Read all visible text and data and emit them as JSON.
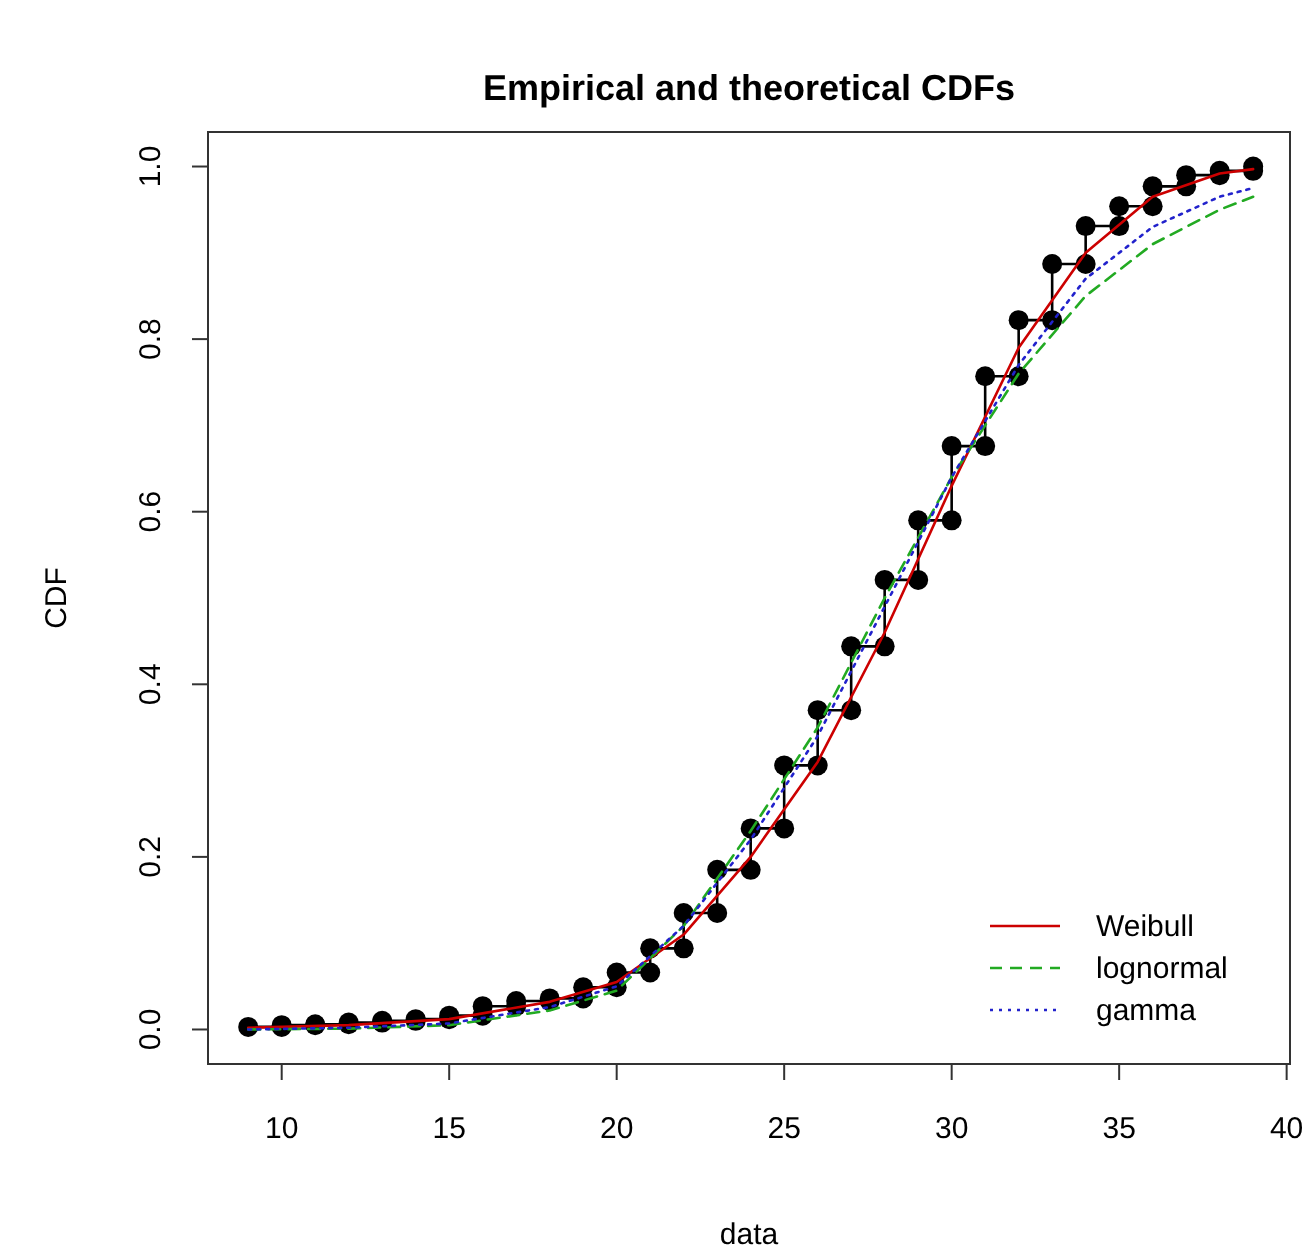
{
  "chart_data": {
    "type": "line",
    "title": "Empirical and theoretical CDFs",
    "xlabel": "data",
    "ylabel": "CDF",
    "xlim": [
      7.8,
      40.1
    ],
    "ylim": [
      -0.04,
      1.04
    ],
    "xticks": [
      10,
      15,
      20,
      25,
      30,
      35,
      40
    ],
    "yticks": [
      {
        "value": 0,
        "label": "0.0"
      },
      0.2,
      0.4,
      0.6,
      0.8,
      {
        "value": 1,
        "label": "1.0"
      }
    ],
    "grid": false,
    "legend": "bottom right",
    "series": [
      {
        "type": "step",
        "color": "#000000",
        "marker": "circle",
        "x": [
          9,
          10,
          10,
          11,
          11,
          12,
          12,
          13,
          13,
          14,
          14,
          15,
          15,
          16,
          16,
          17,
          17,
          18,
          18,
          19,
          19,
          20,
          20,
          21,
          21,
          22,
          22,
          23,
          23,
          24,
          24,
          25,
          25,
          26,
          26,
          27,
          27,
          28,
          28,
          29,
          29,
          30,
          30,
          31,
          31,
          32,
          32,
          33,
          33,
          34,
          34,
          35,
          35,
          36,
          36,
          37,
          37,
          38,
          38,
          39,
          39
        ],
        "values": [
          0.003,
          0.003,
          0.005,
          0.005,
          0.006,
          0.006,
          0.008,
          0.008,
          0.01,
          0.01,
          0.012,
          0.012,
          0.016,
          0.016,
          0.027,
          0.027,
          0.033,
          0.033,
          0.036,
          0.036,
          0.049,
          0.049,
          0.066,
          0.066,
          0.094,
          0.094,
          0.135,
          0.135,
          0.185,
          0.185,
          0.233,
          0.233,
          0.306,
          0.306,
          0.37,
          0.37,
          0.444,
          0.444,
          0.521,
          0.521,
          0.59,
          0.59,
          0.676,
          0.676,
          0.757,
          0.757,
          0.822,
          0.822,
          0.887,
          0.887,
          0.931,
          0.931,
          0.954,
          0.954,
          0.977,
          0.977,
          0.99,
          0.99,
          0.995,
          0.995,
          1.0
        ]
      },
      {
        "name": "Weibull",
        "color": "#cc0000",
        "line_style": "solid",
        "x": [
          9,
          12,
          15,
          18,
          20,
          22,
          24,
          26,
          28,
          30,
          32,
          34,
          36,
          38,
          39
        ],
        "values": [
          0.002,
          0.005,
          0.012,
          0.032,
          0.055,
          0.11,
          0.2,
          0.31,
          0.46,
          0.63,
          0.79,
          0.9,
          0.965,
          0.992,
          0.997
        ]
      },
      {
        "name": "lognormal",
        "color": "#22aa22",
        "line_style": "dashed",
        "x": [
          9,
          12,
          15,
          18,
          20,
          22,
          24,
          26,
          28,
          30,
          32,
          34,
          36,
          38,
          39
        ],
        "values": [
          0.0,
          0.001,
          0.005,
          0.022,
          0.045,
          0.12,
          0.23,
          0.35,
          0.5,
          0.64,
          0.76,
          0.85,
          0.91,
          0.95,
          0.965
        ]
      },
      {
        "name": "gamma",
        "color": "#2222cc",
        "line_style": "dotted",
        "x": [
          9,
          12,
          15,
          18,
          20,
          22,
          24,
          26,
          28,
          30,
          32,
          34,
          36,
          38,
          39
        ],
        "values": [
          0.0,
          0.002,
          0.007,
          0.026,
          0.05,
          0.12,
          0.22,
          0.34,
          0.49,
          0.64,
          0.77,
          0.87,
          0.93,
          0.965,
          0.975
        ]
      }
    ]
  }
}
